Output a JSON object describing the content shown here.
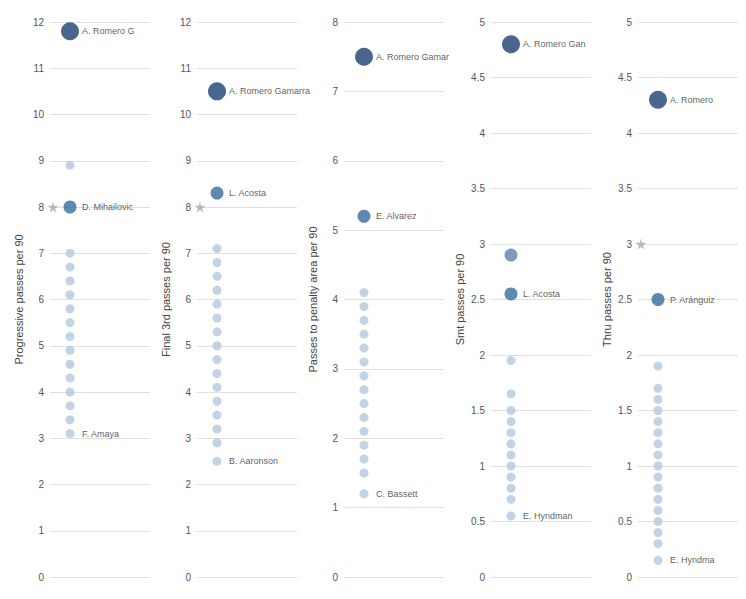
{
  "chart_data": [
    {
      "type": "scatter",
      "ylabel": "Progressive passes per 90",
      "ylim": [
        0,
        12
      ],
      "yticks": [
        0,
        1,
        2,
        3,
        4,
        5,
        6,
        7,
        8,
        9,
        10,
        11,
        12
      ],
      "grid": true,
      "tick_labels": "y",
      "series": [
        {
          "marker": "circle",
          "values": [
            11.8,
            8.9,
            8.0,
            7.0,
            6.7,
            6.4,
            6.1,
            5.8,
            5.5,
            5.2,
            4.9,
            4.6,
            4.3,
            4.0,
            3.7,
            3.4,
            3.1
          ],
          "colors": [
            "#1c4073",
            "#b3c8e0",
            "#386b9e",
            "#b3c8e0",
            "#b3c8e0",
            "#b3c8e0",
            "#b3c8e0",
            "#b3c8e0",
            "#b3c8e0",
            "#b3c8e0",
            "#b3c8e0",
            "#b3c8e0",
            "#b3c8e0",
            "#b3c8e0",
            "#b3c8e0",
            "#b3c8e0",
            "#b3c8e0"
          ]
        },
        {
          "marker": "star",
          "color": "#aaaaaa",
          "values": [
            8.0
          ]
        }
      ],
      "annotations": [
        {
          "text": "A. Romero G",
          "y": 11.8
        },
        {
          "text": "D. Mihailovic",
          "y": 8.0
        },
        {
          "text": "F. Amaya",
          "y": 3.1
        }
      ]
    },
    {
      "type": "scatter",
      "ylabel": "Final 3rd passes per 90",
      "ylim": [
        0,
        12
      ],
      "yticks": [
        0,
        1,
        2,
        3,
        4,
        5,
        6,
        7,
        8,
        9,
        10,
        11,
        12
      ],
      "grid": true,
      "tick_labels": "y",
      "series": [
        {
          "marker": "circle",
          "values": [
            10.5,
            8.3,
            7.1,
            6.8,
            6.5,
            6.2,
            5.9,
            5.6,
            5.3,
            5.0,
            4.7,
            4.4,
            4.1,
            3.8,
            3.5,
            3.2,
            2.9,
            2.5
          ],
          "colors": [
            "#1c4073",
            "#386b9e",
            "#b3c8e0",
            "#b3c8e0",
            "#b3c8e0",
            "#b3c8e0",
            "#b3c8e0",
            "#b3c8e0",
            "#b3c8e0",
            "#b3c8e0",
            "#b3c8e0",
            "#b3c8e0",
            "#b3c8e0",
            "#b3c8e0",
            "#b3c8e0",
            "#b3c8e0",
            "#b3c8e0",
            "#b3c8e0"
          ]
        },
        {
          "marker": "star",
          "color": "#aaaaaa",
          "values": [
            8.0
          ]
        }
      ],
      "annotations": [
        {
          "text": "A. Romero Gamarra",
          "y": 10.5
        },
        {
          "text": "L. Acosta",
          "y": 8.3
        },
        {
          "text": "B. Aaronson",
          "y": 2.5
        }
      ]
    },
    {
      "type": "scatter",
      "ylabel": "Passes to penalty area per 90",
      "ylim": [
        0,
        8
      ],
      "yticks": [
        0,
        1,
        2,
        3,
        4,
        5,
        6,
        7,
        8
      ],
      "grid": true,
      "tick_labels": "y",
      "series": [
        {
          "marker": "circle",
          "values": [
            7.5,
            5.2,
            4.1,
            3.9,
            3.7,
            3.5,
            3.3,
            3.1,
            2.9,
            2.7,
            2.5,
            2.3,
            2.1,
            1.9,
            1.7,
            1.5,
            1.2
          ],
          "colors": [
            "#1c4073",
            "#386b9e",
            "#b3c8e0",
            "#b3c8e0",
            "#b3c8e0",
            "#b3c8e0",
            "#b3c8e0",
            "#b3c8e0",
            "#b3c8e0",
            "#b3c8e0",
            "#b3c8e0",
            "#b3c8e0",
            "#b3c8e0",
            "#b3c8e0",
            "#b3c8e0",
            "#b3c8e0",
            "#b3c8e0"
          ]
        }
      ],
      "annotations": [
        {
          "text": "A. Romero Gamar",
          "y": 7.5
        },
        {
          "text": "E. Alvarez",
          "y": 5.2
        },
        {
          "text": "C. Bassett",
          "y": 1.2
        }
      ]
    },
    {
      "type": "scatter",
      "ylabel": "Smt passes per 90",
      "ylim": [
        0,
        5
      ],
      "yticks": [
        0,
        0.5,
        1,
        1.5,
        2,
        2.5,
        3,
        3.5,
        4,
        4.5,
        5
      ],
      "grid": true,
      "tick_labels": "y",
      "series": [
        {
          "marker": "circle",
          "values": [
            4.8,
            2.9,
            2.55,
            1.95,
            1.65,
            1.5,
            1.4,
            1.3,
            1.2,
            1.1,
            1.0,
            0.9,
            0.8,
            0.7,
            0.55
          ],
          "colors": [
            "#1c4073",
            "#5285b3",
            "#386b9e",
            "#b3c8e0",
            "#b3c8e0",
            "#b3c8e0",
            "#b3c8e0",
            "#b3c8e0",
            "#b3c8e0",
            "#b3c8e0",
            "#b3c8e0",
            "#b3c8e0",
            "#b3c8e0",
            "#b3c8e0",
            "#b3c8e0"
          ]
        }
      ],
      "annotations": [
        {
          "text": "A. Romero Gan",
          "y": 4.8
        },
        {
          "text": "L. Acosta",
          "y": 2.55
        },
        {
          "text": "E. Hyndman",
          "y": 0.55
        }
      ]
    },
    {
      "type": "scatter",
      "ylabel": "Thru passes per 90",
      "ylim": [
        0,
        5
      ],
      "yticks": [
        0,
        0.5,
        1,
        1.5,
        2,
        2.5,
        3,
        3.5,
        4,
        4.5,
        5
      ],
      "grid": true,
      "tick_labels": "y",
      "series": [
        {
          "marker": "circle",
          "values": [
            4.3,
            2.5,
            1.9,
            1.7,
            1.6,
            1.5,
            1.4,
            1.3,
            1.2,
            1.1,
            1.0,
            0.9,
            0.8,
            0.7,
            0.6,
            0.5,
            0.4,
            0.3,
            0.15
          ],
          "colors": [
            "#1c4073",
            "#386b9e",
            "#b3c8e0",
            "#b3c8e0",
            "#b3c8e0",
            "#b3c8e0",
            "#b3c8e0",
            "#b3c8e0",
            "#b3c8e0",
            "#b3c8e0",
            "#b3c8e0",
            "#b3c8e0",
            "#b3c8e0",
            "#b3c8e0",
            "#b3c8e0",
            "#b3c8e0",
            "#b3c8e0",
            "#b3c8e0",
            "#b3c8e0"
          ]
        },
        {
          "marker": "star",
          "color": "#aaaaaa",
          "values": [
            3.0
          ]
        }
      ],
      "annotations": [
        {
          "text": "A. Romero",
          "y": 4.3
        },
        {
          "text": "P. Aránguiz",
          "y": 2.5
        },
        {
          "text": "E. Hyndma",
          "y": 0.15
        }
      ]
    }
  ]
}
